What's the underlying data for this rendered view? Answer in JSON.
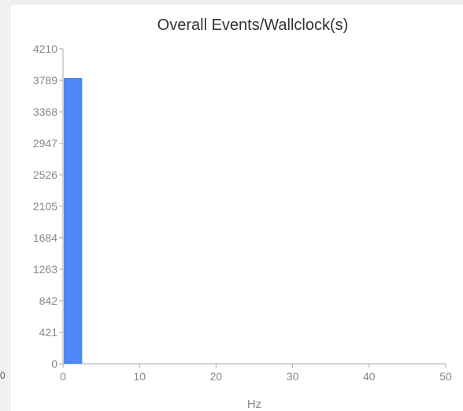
{
  "left_fragment": "0",
  "chart_data": {
    "type": "bar",
    "title": "Overall Events/Wallclock(s)",
    "xlabel": "Hz",
    "ylabel": "",
    "x": [
      1.25
    ],
    "bar_width": 2.5,
    "values": [
      3820
    ],
    "series_color": "#4f87f5",
    "xlim": [
      0,
      50
    ],
    "ylim": [
      0,
      4210
    ],
    "xticks": [
      0,
      10,
      20,
      30,
      40,
      50
    ],
    "yticks": [
      0,
      421,
      842,
      1263,
      1684,
      2105,
      2526,
      2947,
      3368,
      3789,
      4210
    ],
    "grid": false,
    "legend": "none"
  }
}
